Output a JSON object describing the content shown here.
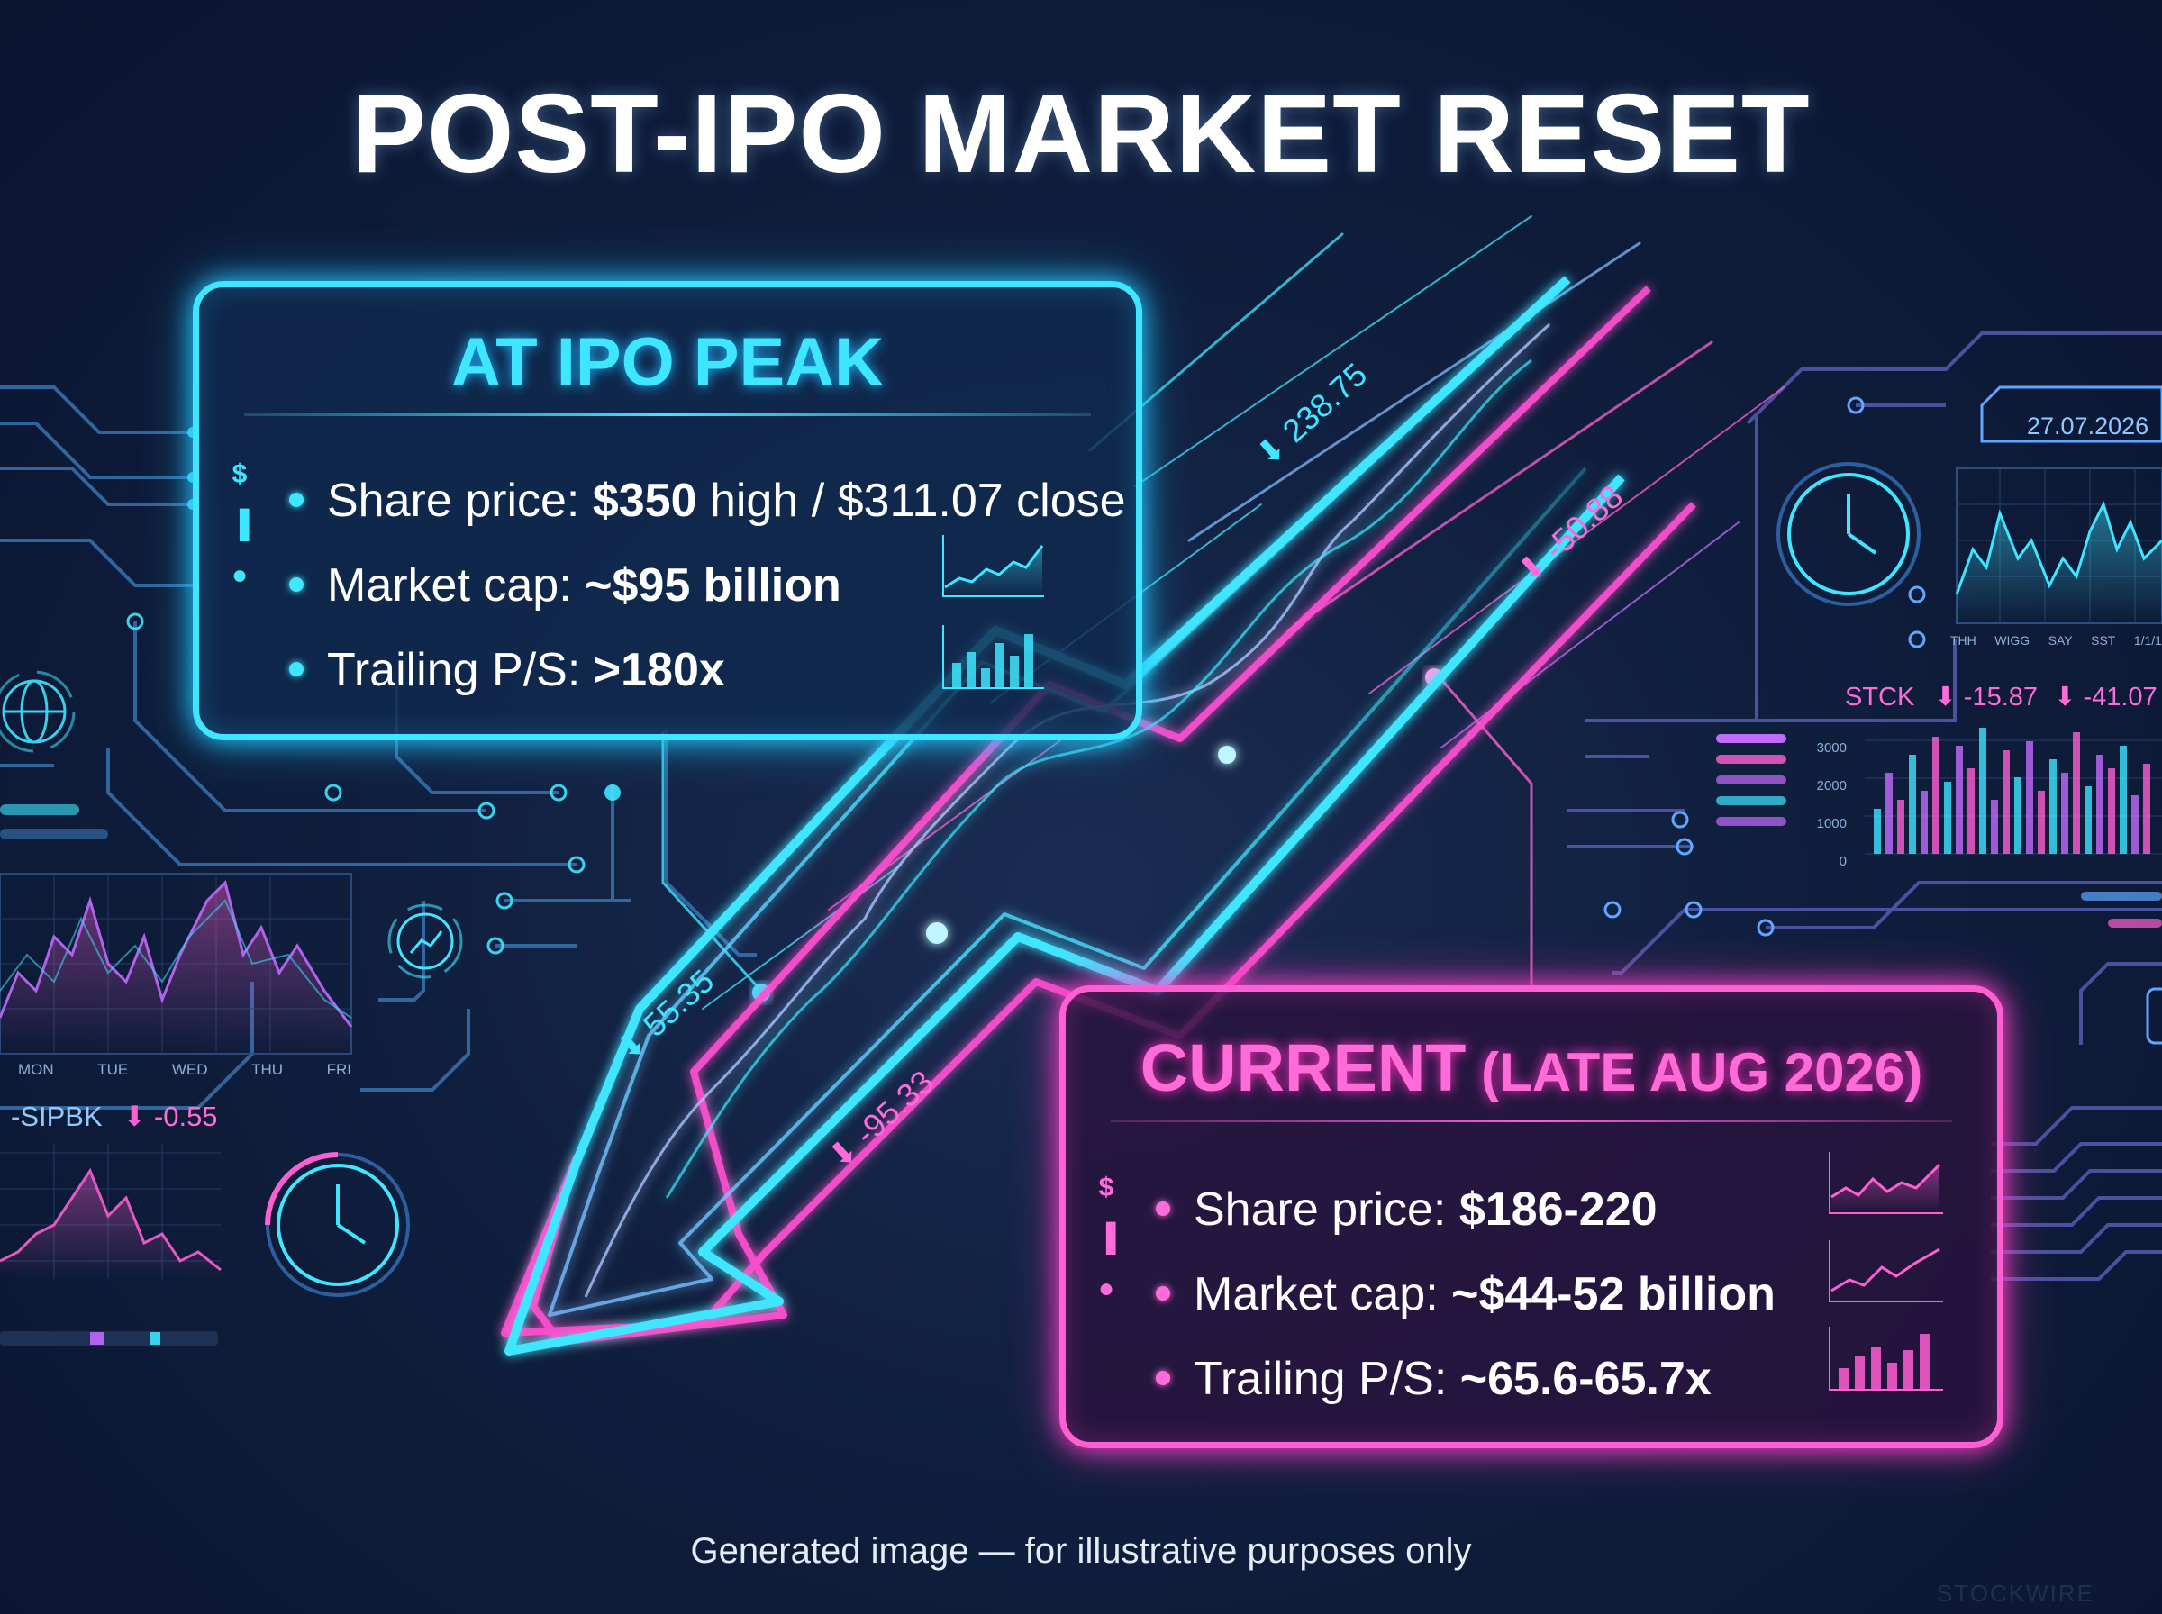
{
  "title": "POST-IPO MARKET RESET",
  "peak": {
    "heading": "AT IPO PEAK",
    "rows": [
      {
        "label": "Share price: ",
        "value": "$350",
        "suffix": " high / $311.07 close"
      },
      {
        "label": "Market cap: ",
        "value": "~$95 billion",
        "suffix": ""
      },
      {
        "label": "Trailing P/S: ",
        "value": ">180x",
        "suffix": ""
      }
    ]
  },
  "current": {
    "heading_main": "CURRENT",
    "heading_sub": " (LATE AUG 2026)",
    "rows": [
      {
        "label": "Share price: ",
        "value": "$186-220",
        "suffix": ""
      },
      {
        "label": "Market cap: ",
        "value": "~$44-52 billion",
        "suffix": ""
      },
      {
        "label": "Trailing P/S: ",
        "value": "~65.6-65.7x",
        "suffix": ""
      }
    ]
  },
  "arrow_labels": {
    "a1": "238.75",
    "a2": "-50.88",
    "a3": "55.35",
    "a4": "-95.33"
  },
  "left_widgets": {
    "days": [
      "MON",
      "TUE",
      "WED",
      "THU",
      "FRI"
    ],
    "ticker": "-SIPBK",
    "ticker_change": "-0.55"
  },
  "right_widgets": {
    "date": "27.07.2026",
    "days": [
      "THH",
      "WIGG",
      "SAY",
      "SST",
      "1/1/1"
    ],
    "ticker": "STCK",
    "change1": "-15.87",
    "change2": "-41.07",
    "y_ticks": [
      "3000",
      "2000",
      "1000",
      "0"
    ]
  },
  "footer": "Generated image — for illustrative purposes only",
  "watermark": "STOCKWIRE",
  "colors": {
    "cyan": "#3fe6ff",
    "magenta": "#ff5fd2",
    "background": "#0d1a33"
  }
}
